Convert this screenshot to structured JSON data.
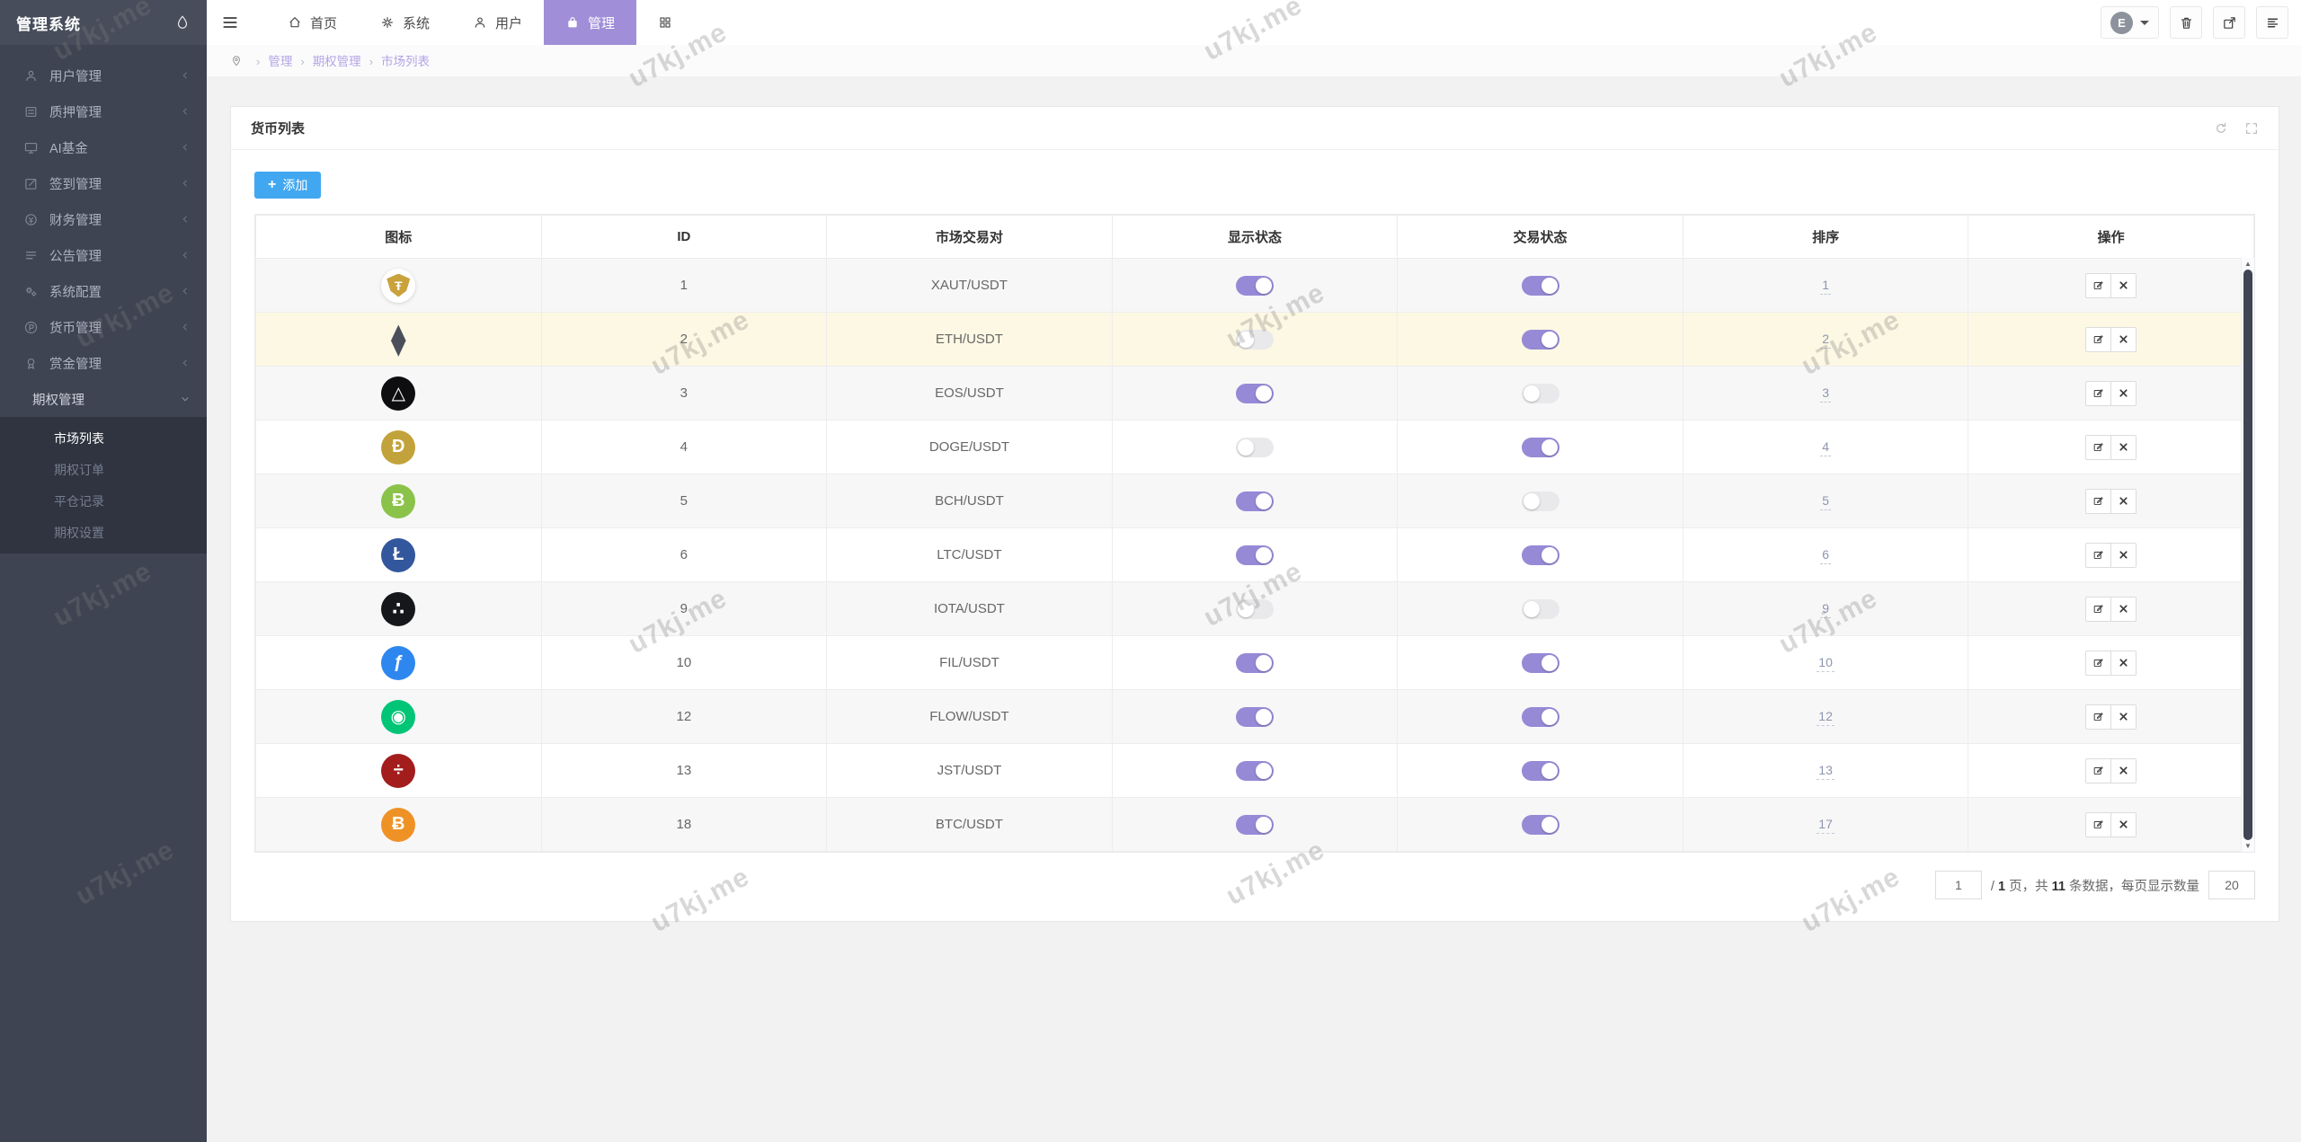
{
  "app_title": "管理系统",
  "topnav": {
    "tabs": [
      {
        "label": "首页",
        "icon": "home-icon",
        "active": false
      },
      {
        "label": "系统",
        "icon": "gear-icon",
        "active": false
      },
      {
        "label": "用户",
        "icon": "person-icon",
        "active": false
      },
      {
        "label": "管理",
        "icon": "bag-icon",
        "active": true
      },
      {
        "label": "",
        "icon": "grid-icon",
        "active": false
      }
    ],
    "user_initial": "E"
  },
  "breadcrumb": [
    "管理",
    "期权管理",
    "市场列表"
  ],
  "sidebar": {
    "items": [
      {
        "label": "用户管理",
        "icon": "user-icon"
      },
      {
        "label": "质押管理",
        "icon": "pledge-icon"
      },
      {
        "label": "AI基金",
        "icon": "monitor-icon"
      },
      {
        "label": "签到管理",
        "icon": "checkin-icon"
      },
      {
        "label": "财务管理",
        "icon": "finance-icon"
      },
      {
        "label": "公告管理",
        "icon": "announcement-icon"
      },
      {
        "label": "系统配置",
        "icon": "settings-icon"
      },
      {
        "label": "货币管理",
        "icon": "currency-icon"
      },
      {
        "label": "赏金管理",
        "icon": "bounty-icon"
      }
    ],
    "open_group": {
      "label": "期权管理",
      "children": [
        {
          "label": "市场列表",
          "active": true
        },
        {
          "label": "期权订单",
          "active": false
        },
        {
          "label": "平仓记录",
          "active": false
        },
        {
          "label": "期权设置",
          "active": false
        }
      ]
    }
  },
  "card": {
    "title": "货币列表",
    "add_button_label": "添加"
  },
  "table": {
    "headers": [
      "图标",
      "ID",
      "市场交易对",
      "显示状态",
      "交易状态",
      "排序",
      "操作"
    ],
    "rows": [
      {
        "id": "1",
        "pair": "XAUT/USDT",
        "display_on": true,
        "trade_on": true,
        "sort": "1",
        "coin": "xaut",
        "glyph": "Ŧ",
        "bg": "#ffffff",
        "fg": "#c9a23c",
        "highlight": false
      },
      {
        "id": "2",
        "pair": "ETH/USDT",
        "display_on": false,
        "trade_on": true,
        "sort": "2",
        "coin": "eth",
        "glyph": "⧫",
        "bg": "transparent",
        "fg": "#4a4f5a",
        "highlight": true
      },
      {
        "id": "3",
        "pair": "EOS/USDT",
        "display_on": true,
        "trade_on": false,
        "sort": "3",
        "coin": "eos",
        "glyph": "△",
        "bg": "#0e0e10",
        "fg": "#ffffff",
        "highlight": false
      },
      {
        "id": "4",
        "pair": "DOGE/USDT",
        "display_on": false,
        "trade_on": true,
        "sort": "4",
        "coin": "doge",
        "glyph": "Ð",
        "bg": "#c2a23a",
        "fg": "#ffffff",
        "highlight": false
      },
      {
        "id": "5",
        "pair": "BCH/USDT",
        "display_on": true,
        "trade_on": false,
        "sort": "5",
        "coin": "bch",
        "glyph": "Ƀ",
        "bg": "#8bc34a",
        "fg": "#ffffff",
        "highlight": false
      },
      {
        "id": "6",
        "pair": "LTC/USDT",
        "display_on": true,
        "trade_on": true,
        "sort": "6",
        "coin": "ltc",
        "glyph": "Ł",
        "bg": "#33579d",
        "fg": "#ffffff",
        "highlight": false
      },
      {
        "id": "9",
        "pair": "IOTA/USDT",
        "display_on": false,
        "trade_on": false,
        "sort": "9",
        "coin": "iota",
        "glyph": "∴",
        "bg": "#16171b",
        "fg": "#ffffff",
        "highlight": false
      },
      {
        "id": "10",
        "pair": "FIL/USDT",
        "display_on": true,
        "trade_on": true,
        "sort": "10",
        "coin": "fil",
        "glyph": "ƒ",
        "bg": "#2e87ef",
        "fg": "#ffffff",
        "highlight": false
      },
      {
        "id": "12",
        "pair": "FLOW/USDT",
        "display_on": true,
        "trade_on": true,
        "sort": "12",
        "coin": "flow",
        "glyph": "◉",
        "bg": "#00c576",
        "fg": "#ffffff",
        "highlight": false
      },
      {
        "id": "13",
        "pair": "JST/USDT",
        "display_on": true,
        "trade_on": true,
        "sort": "13",
        "coin": "jst",
        "glyph": "÷",
        "bg": "#a31d1d",
        "fg": "#ffffff",
        "highlight": false
      },
      {
        "id": "18",
        "pair": "BTC/USDT",
        "display_on": true,
        "trade_on": true,
        "sort": "17",
        "coin": "btc",
        "glyph": "Ƀ",
        "bg": "#ef9226",
        "fg": "#ffffff",
        "highlight": false
      }
    ]
  },
  "pagination": {
    "page_input": "1",
    "summary_parts": [
      {
        "text": "/ ",
        "bold": false
      },
      {
        "text": "1",
        "bold": true
      },
      {
        "text": " 页，共 ",
        "bold": false
      },
      {
        "text": "11",
        "bold": true
      },
      {
        "text": " 条数据，每页显示数量",
        "bold": false
      }
    ],
    "size_input": "20"
  },
  "watermark_text": "u7kj.me",
  "colors": {
    "accent_purple": "#a08fd8",
    "toggle_on": "#968ad6",
    "add_button_blue": "#41a7f1",
    "highlight_row": "#fcf8e3",
    "sidebar_bg": "#3e4452"
  }
}
